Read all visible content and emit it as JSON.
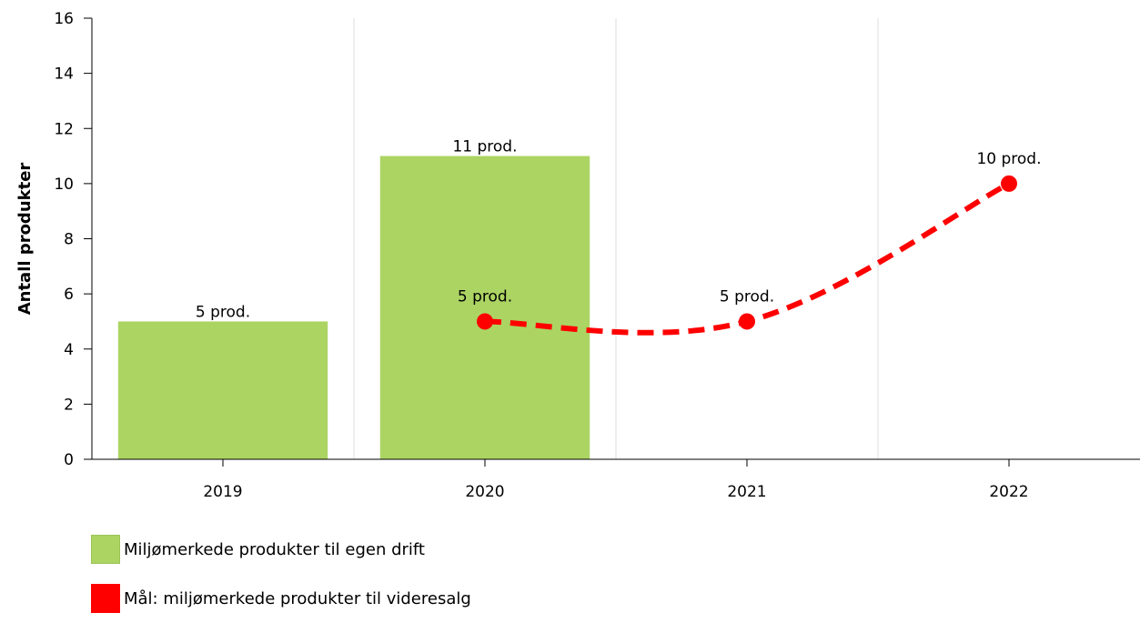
{
  "chart_data": {
    "type": "bar",
    "categories": [
      "2019",
      "2020",
      "2021",
      "2022"
    ],
    "title": "",
    "xlabel": "",
    "ylabel": "Antall produkter",
    "ylim": [
      0,
      16
    ],
    "yticks": [
      "0",
      "2",
      "4",
      "6",
      "8",
      "10",
      "12",
      "14",
      "16"
    ],
    "grid": true,
    "legend_position": "bottom-left",
    "series": [
      {
        "name": "Miljømerkede produkter til egen drift",
        "type": "bar",
        "color": "#acd463",
        "x": [
          "2019",
          "2020"
        ],
        "values": [
          5,
          11
        ],
        "labels": [
          "5 prod.",
          "11 prod."
        ]
      },
      {
        "name": "Mål: miljømerkede produkter til videresalg",
        "type": "line",
        "style": "dashed",
        "color": "#ff0000",
        "x": [
          "2020",
          "2021",
          "2022"
        ],
        "values": [
          5,
          5,
          10
        ],
        "labels": [
          "5 prod.",
          "5 prod.",
          "10 prod."
        ]
      }
    ]
  }
}
